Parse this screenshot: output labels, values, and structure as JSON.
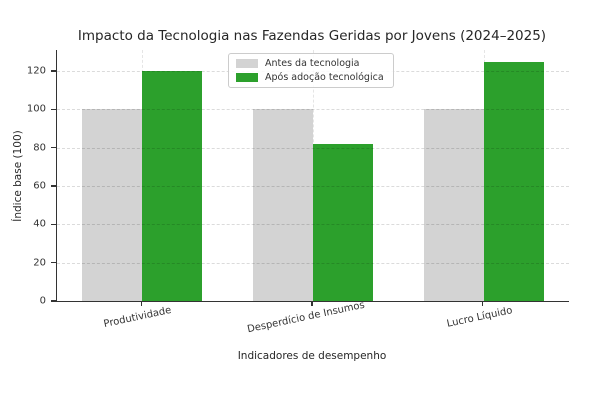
{
  "title": "Impacto da Tecnologia nas Fazendas Geridas por Jovens (2024–2025)",
  "chart_data": {
    "type": "bar",
    "categories": [
      "Produtividade",
      "Desperdício de Insumos",
      "Lucro Líquido"
    ],
    "series": [
      {
        "name": "Antes da tecnologia",
        "values": [
          100,
          100,
          100
        ],
        "color": "#d3d3d3"
      },
      {
        "name": "Após adoção tecnológica",
        "values": [
          120,
          82,
          125
        ],
        "color": "#2ca02c"
      }
    ],
    "xlabel": "Indicadores de desempenho",
    "ylabel": "Índice base (100)",
    "yticks": [
      0,
      20,
      40,
      60,
      80,
      100,
      120
    ],
    "ylim": [
      0,
      131
    ],
    "grid": true,
    "legend_position": "upper center"
  },
  "colors": {
    "before_bar": "#d3d3d3",
    "after_bar": "#2ca02c",
    "spine": "#333333",
    "text": "#262626"
  }
}
